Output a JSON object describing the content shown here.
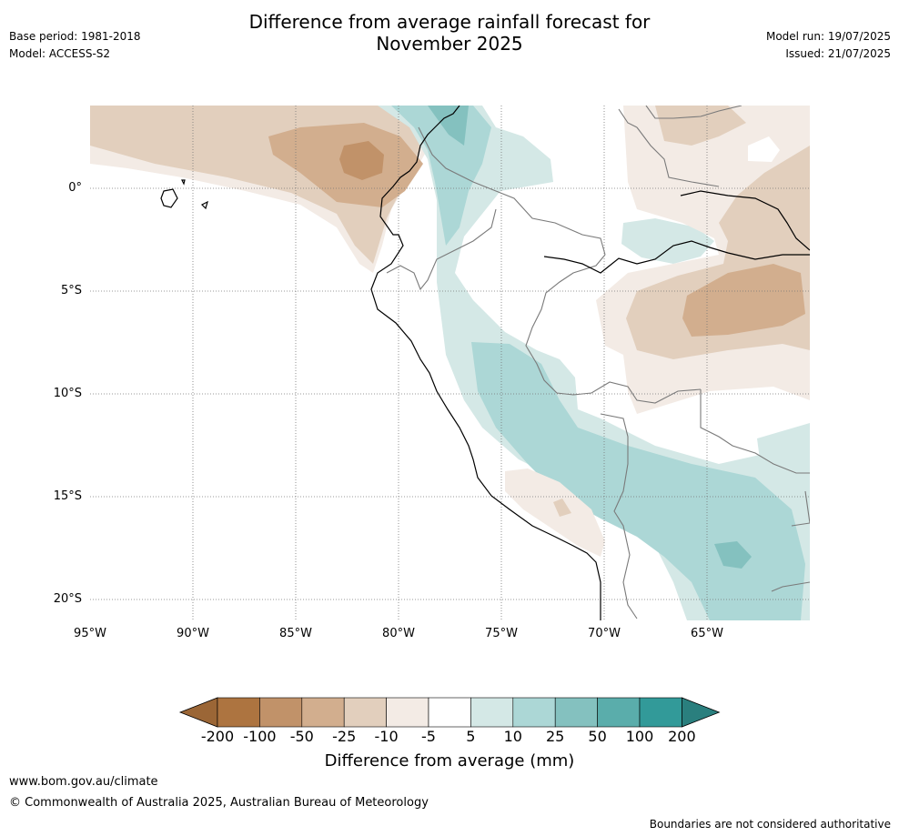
{
  "header": {
    "title_line1": "Difference from average rainfall forecast for",
    "title_line2": "November 2025",
    "base_period": "Base period: 1981-2018",
    "model": "Model: ACCESS-S2",
    "model_run": "Model run: 19/07/2025",
    "issued": "Issued: 21/07/2025"
  },
  "map": {
    "latitude_labels": [
      "0°",
      "5°S",
      "10°S",
      "15°S",
      "20°S"
    ],
    "longitude_labels": [
      "95°W",
      "90°W",
      "85°W",
      "80°W",
      "75°W",
      "70°W",
      "65°W"
    ]
  },
  "colorbar": {
    "title": "Difference from average (mm)",
    "tick_labels": [
      "-200",
      "-100",
      "-50",
      "-25",
      "-10",
      "-5",
      "5",
      "10",
      "25",
      "50",
      "100",
      "200"
    ],
    "colors": [
      "#9b6636",
      "#ad7440",
      "#c19269",
      "#d2ae8e",
      "#e2cfbd",
      "#f3ebe5",
      "#ffffff",
      "#d4e8e6",
      "#acd7d6",
      "#84c1bf",
      "#5aadab",
      "#329a99",
      "#2a7f7e"
    ]
  },
  "footer": {
    "url": "www.bom.gov.au/climate",
    "copyright": "© Commonwealth of Australia 2025, Australian Bureau of Meteorology",
    "disclaimer": "Boundaries are not considered authoritative"
  }
}
